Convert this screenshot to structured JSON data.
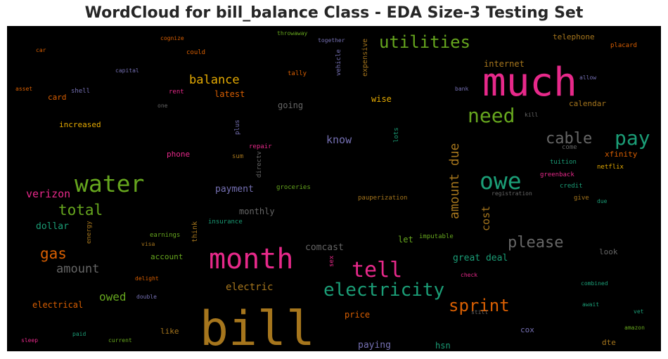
{
  "chart_data": {
    "type": "wordcloud",
    "title": "WordCloud for bill_balance Class - EDA Size-3 Testing Set",
    "background": "#000000",
    "palette": [
      "#1b9e77",
      "#d95f02",
      "#7570b3",
      "#e7298a",
      "#66a61e",
      "#e6ab02",
      "#a6761d",
      "#666666"
    ],
    "words": [
      {
        "text": "bill",
        "weight": 68,
        "color": "#a6761d",
        "orientation": "horizontal"
      },
      {
        "text": "much",
        "weight": 56,
        "color": "#e7298a",
        "orientation": "horizontal"
      },
      {
        "text": "month",
        "weight": 40,
        "color": "#e7298a",
        "orientation": "horizontal"
      },
      {
        "text": "water",
        "weight": 33,
        "color": "#66a61e",
        "orientation": "horizontal"
      },
      {
        "text": "owe",
        "weight": 33,
        "color": "#1b9e77",
        "orientation": "horizontal"
      },
      {
        "text": "tell",
        "weight": 30,
        "color": "#e7298a",
        "orientation": "horizontal"
      },
      {
        "text": "need",
        "weight": 28,
        "color": "#66a61e",
        "orientation": "horizontal"
      },
      {
        "text": "pay",
        "weight": 28,
        "color": "#1b9e77",
        "orientation": "horizontal"
      },
      {
        "text": "electricity",
        "weight": 26,
        "color": "#1b9e77",
        "orientation": "horizontal"
      },
      {
        "text": "utilities",
        "weight": 24,
        "color": "#66a61e",
        "orientation": "horizontal"
      },
      {
        "text": "sprint",
        "weight": 24,
        "color": "#d95f02",
        "orientation": "horizontal"
      },
      {
        "text": "cable",
        "weight": 22,
        "color": "#666666",
        "orientation": "horizontal"
      },
      {
        "text": "please",
        "weight": 22,
        "color": "#666666",
        "orientation": "horizontal"
      },
      {
        "text": "total",
        "weight": 21,
        "color": "#66a61e",
        "orientation": "horizontal"
      },
      {
        "text": "gas",
        "weight": 21,
        "color": "#d95f02",
        "orientation": "horizontal"
      },
      {
        "text": "amount due",
        "weight": 18,
        "color": "#a6761d",
        "orientation": "vertical"
      },
      {
        "text": "balance",
        "weight": 17,
        "color": "#e6ab02",
        "orientation": "horizontal"
      },
      {
        "text": "amount",
        "weight": 17,
        "color": "#666666",
        "orientation": "horizontal"
      },
      {
        "text": "owed",
        "weight": 16,
        "color": "#66a61e",
        "orientation": "horizontal"
      },
      {
        "text": "verizon",
        "weight": 15,
        "color": "#e7298a",
        "orientation": "horizontal"
      },
      {
        "text": "cost",
        "weight": 15,
        "color": "#a6761d",
        "orientation": "vertical"
      },
      {
        "text": "know",
        "weight": 15,
        "color": "#7570b3",
        "orientation": "horizontal"
      },
      {
        "text": "electric",
        "weight": 14,
        "color": "#a6761d",
        "orientation": "horizontal"
      },
      {
        "text": "dollar",
        "weight": 13,
        "color": "#1b9e77",
        "orientation": "horizontal"
      },
      {
        "text": "payment",
        "weight": 13,
        "color": "#7570b3",
        "orientation": "horizontal"
      },
      {
        "text": "comcast",
        "weight": 13,
        "color": "#666666",
        "orientation": "horizontal"
      },
      {
        "text": "great deal",
        "weight": 13,
        "color": "#1b9e77",
        "orientation": "horizontal"
      },
      {
        "text": "paying",
        "weight": 13,
        "color": "#7570b3",
        "orientation": "horizontal"
      },
      {
        "text": "internet",
        "weight": 12,
        "color": "#a6761d",
        "orientation": "horizontal"
      },
      {
        "text": "latest",
        "weight": 12,
        "color": "#d95f02",
        "orientation": "horizontal"
      },
      {
        "text": "wise",
        "weight": 12,
        "color": "#e6ab02",
        "orientation": "horizontal"
      },
      {
        "text": "going",
        "weight": 12,
        "color": "#666666",
        "orientation": "horizontal"
      },
      {
        "text": "monthly",
        "weight": 12,
        "color": "#666666",
        "orientation": "horizontal"
      },
      {
        "text": "let",
        "weight": 12,
        "color": "#66a61e",
        "orientation": "horizontal"
      },
      {
        "text": "price",
        "weight": 12,
        "color": "#d95f02",
        "orientation": "horizontal"
      },
      {
        "text": "electrical",
        "weight": 12,
        "color": "#d95f02",
        "orientation": "horizontal"
      },
      {
        "text": "hsn",
        "weight": 12,
        "color": "#1b9e77",
        "orientation": "horizontal"
      },
      {
        "text": "account",
        "weight": 11,
        "color": "#66a61e",
        "orientation": "horizontal"
      },
      {
        "text": "increased",
        "weight": 11,
        "color": "#e6ab02",
        "orientation": "horizontal"
      },
      {
        "text": "calendar",
        "weight": 11,
        "color": "#a6761d",
        "orientation": "horizontal"
      },
      {
        "text": "telephone",
        "weight": 11,
        "color": "#a6761d",
        "orientation": "horizontal"
      },
      {
        "text": "card",
        "weight": 11,
        "color": "#d95f02",
        "orientation": "horizontal"
      },
      {
        "text": "phone",
        "weight": 11,
        "color": "#e7298a",
        "orientation": "horizontal"
      },
      {
        "text": "like",
        "weight": 11,
        "color": "#a6761d",
        "orientation": "horizontal"
      },
      {
        "text": "cox",
        "weight": 11,
        "color": "#7570b3",
        "orientation": "horizontal"
      },
      {
        "text": "look",
        "weight": 11,
        "color": "#666666",
        "orientation": "horizontal"
      },
      {
        "text": "xfinity",
        "weight": 11,
        "color": "#d95f02",
        "orientation": "horizontal"
      },
      {
        "text": "dte",
        "weight": 11,
        "color": "#a6761d",
        "orientation": "horizontal"
      },
      {
        "text": "expensive",
        "weight": 10,
        "color": "#a6761d",
        "orientation": "vertical"
      },
      {
        "text": "think",
        "weight": 10,
        "color": "#a6761d",
        "orientation": "vertical"
      },
      {
        "text": "come",
        "weight": 9,
        "color": "#666666",
        "orientation": "horizontal"
      },
      {
        "text": "tuition",
        "weight": 9,
        "color": "#1b9e77",
        "orientation": "horizontal"
      },
      {
        "text": "greenback",
        "weight": 9,
        "color": "#e7298a",
        "orientation": "horizontal"
      },
      {
        "text": "energy",
        "weight": 9,
        "color": "#a6761d",
        "orientation": "vertical"
      },
      {
        "text": "rent",
        "weight": 9,
        "color": "#e7298a",
        "orientation": "horizontal"
      },
      {
        "text": "tally",
        "weight": 9,
        "color": "#d95f02",
        "orientation": "horizontal"
      },
      {
        "text": "could",
        "weight": 9,
        "color": "#d95f02",
        "orientation": "horizontal"
      },
      {
        "text": "sum",
        "weight": 9,
        "color": "#a6761d",
        "orientation": "horizontal"
      },
      {
        "text": "netflix",
        "weight": 9,
        "color": "#e6ab02",
        "orientation": "horizontal"
      },
      {
        "text": "placard",
        "weight": 9,
        "color": "#d95f02",
        "orientation": "horizontal"
      },
      {
        "text": "shell",
        "weight": 9,
        "color": "#7570b3",
        "orientation": "horizontal"
      },
      {
        "text": "credit",
        "weight": 9,
        "color": "#1b9e77",
        "orientation": "horizontal"
      },
      {
        "text": "give",
        "weight": 9,
        "color": "#a6761d",
        "orientation": "horizontal"
      },
      {
        "text": "earnings",
        "weight": 9,
        "color": "#66a61e",
        "orientation": "horizontal"
      },
      {
        "text": "groceries",
        "weight": 9,
        "color": "#66a61e",
        "orientation": "horizontal"
      },
      {
        "text": "insurance",
        "weight": 9,
        "color": "#1b9e77",
        "orientation": "horizontal"
      },
      {
        "text": "pauperization",
        "weight": 9,
        "color": "#a6761d",
        "orientation": "horizontal"
      },
      {
        "text": "imputable",
        "weight": 9,
        "color": "#66a61e",
        "orientation": "horizontal"
      },
      {
        "text": "repair",
        "weight": 9,
        "color": "#e7298a",
        "orientation": "horizontal"
      },
      {
        "text": "plus",
        "weight": 9,
        "color": "#7570b3",
        "orientation": "vertical"
      },
      {
        "text": "directv",
        "weight": 9,
        "color": "#666666",
        "orientation": "vertical"
      },
      {
        "text": "lots",
        "weight": 9,
        "color": "#1b9e77",
        "orientation": "vertical"
      },
      {
        "text": "vehicle",
        "weight": 9,
        "color": "#7570b3",
        "orientation": "vertical"
      },
      {
        "text": "sex",
        "weight": 9,
        "color": "#e7298a",
        "orientation": "vertical"
      },
      {
        "text": "cognize",
        "weight": 8,
        "color": "#d95f02",
        "orientation": "horizontal"
      },
      {
        "text": "throwaway",
        "weight": 8,
        "color": "#66a61e",
        "orientation": "horizontal"
      },
      {
        "text": "together",
        "weight": 8,
        "color": "#7570b3",
        "orientation": "horizontal"
      },
      {
        "text": "car",
        "weight": 8,
        "color": "#d95f02",
        "orientation": "horizontal"
      },
      {
        "text": "capital",
        "weight": 8,
        "color": "#7570b3",
        "orientation": "horizontal"
      },
      {
        "text": "asset",
        "weight": 8,
        "color": "#d95f02",
        "orientation": "horizontal"
      },
      {
        "text": "one",
        "weight": 8,
        "color": "#666666",
        "orientation": "horizontal"
      },
      {
        "text": "bank",
        "weight": 8,
        "color": "#7570b3",
        "orientation": "horizontal"
      },
      {
        "text": "allow",
        "weight": 8,
        "color": "#7570b3",
        "orientation": "horizontal"
      },
      {
        "text": "kill",
        "weight": 8,
        "color": "#666666",
        "orientation": "horizontal"
      },
      {
        "text": "registration",
        "weight": 8,
        "color": "#666666",
        "orientation": "horizontal"
      },
      {
        "text": "due",
        "weight": 8,
        "color": "#1b9e77",
        "orientation": "horizontal"
      },
      {
        "text": "visa",
        "weight": 8,
        "color": "#a6761d",
        "orientation": "horizontal"
      },
      {
        "text": "delight",
        "weight": 8,
        "color": "#d95f02",
        "orientation": "horizontal"
      },
      {
        "text": "double",
        "weight": 8,
        "color": "#7570b3",
        "orientation": "horizontal"
      },
      {
        "text": "check",
        "weight": 8,
        "color": "#e7298a",
        "orientation": "horizontal"
      },
      {
        "text": "combined",
        "weight": 8,
        "color": "#1b9e77",
        "orientation": "horizontal"
      },
      {
        "text": "await",
        "weight": 8,
        "color": "#1b9e77",
        "orientation": "horizontal"
      },
      {
        "text": "still",
        "weight": 8,
        "color": "#666666",
        "orientation": "horizontal"
      },
      {
        "text": "vet",
        "weight": 8,
        "color": "#1b9e77",
        "orientation": "horizontal"
      },
      {
        "text": "amazon",
        "weight": 8,
        "color": "#66a61e",
        "orientation": "horizontal"
      },
      {
        "text": "sleep",
        "weight": 8,
        "color": "#e7298a",
        "orientation": "horizontal"
      },
      {
        "text": "paid",
        "weight": 8,
        "color": "#1b9e77",
        "orientation": "horizontal"
      },
      {
        "text": "current",
        "weight": 8,
        "color": "#66a61e",
        "orientation": "horizontal"
      }
    ]
  }
}
